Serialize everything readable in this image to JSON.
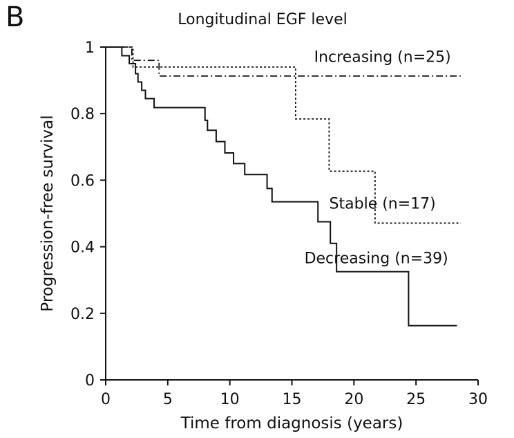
{
  "panel_label": "B",
  "chart_data": {
    "type": "line",
    "subtype": "kaplan-meier step plot",
    "title": "Longitudinal EGF level",
    "xlabel": "Time from diagnosis (years)",
    "ylabel": "Progression-free survival",
    "xlim": [
      0,
      30
    ],
    "ylim": [
      0,
      1
    ],
    "x_ticks": [
      0,
      5,
      10,
      15,
      20,
      25,
      30
    ],
    "x_tick_labels": [
      "0",
      "5",
      "10",
      "15",
      "20",
      "25",
      "30"
    ],
    "y_ticks": [
      0,
      0.2,
      0.4,
      0.6,
      0.8,
      1
    ],
    "y_tick_labels": [
      "0",
      "0.2",
      "0.4",
      "0.6",
      "0.8",
      "1"
    ],
    "grid": false,
    "series": [
      {
        "name": "Increasing (n=25)",
        "style": "dash-dot",
        "color": "#111111",
        "steps": [
          [
            0,
            1.0
          ],
          [
            2.1,
            0.96
          ],
          [
            3.4,
            0.96
          ],
          [
            4.3,
            0.913
          ],
          [
            28.6,
            0.913
          ]
        ]
      },
      {
        "name": "Stable (n=17)",
        "style": "dotted",
        "color": "#111111",
        "steps": [
          [
            0,
            1.0
          ],
          [
            2.2,
            0.94
          ],
          [
            15.3,
            0.94
          ],
          [
            15.3,
            0.784
          ],
          [
            18.0,
            0.784
          ],
          [
            18.0,
            0.627
          ],
          [
            21.7,
            0.627
          ],
          [
            21.7,
            0.471
          ],
          [
            28.6,
            0.471
          ]
        ]
      },
      {
        "name": "Decreasing (n=39)",
        "style": "solid",
        "color": "#111111",
        "steps": [
          [
            0,
            1.0
          ],
          [
            1.3,
            0.974
          ],
          [
            1.9,
            0.95
          ],
          [
            2.4,
            0.92
          ],
          [
            2.6,
            0.895
          ],
          [
            2.9,
            0.87
          ],
          [
            3.2,
            0.845
          ],
          [
            3.9,
            0.818
          ],
          [
            8.0,
            0.818
          ],
          [
            8.0,
            0.78
          ],
          [
            8.2,
            0.75
          ],
          [
            8.9,
            0.716
          ],
          [
            9.6,
            0.682
          ],
          [
            10.3,
            0.65
          ],
          [
            11.2,
            0.617
          ],
          [
            13.0,
            0.617
          ],
          [
            13.0,
            0.575
          ],
          [
            13.4,
            0.535
          ],
          [
            17.1,
            0.535
          ],
          [
            17.1,
            0.475
          ],
          [
            18.1,
            0.475
          ],
          [
            18.1,
            0.41
          ],
          [
            18.6,
            0.325
          ],
          [
            24.4,
            0.325
          ],
          [
            24.4,
            0.163
          ],
          [
            28.3,
            0.163
          ]
        ]
      }
    ]
  }
}
